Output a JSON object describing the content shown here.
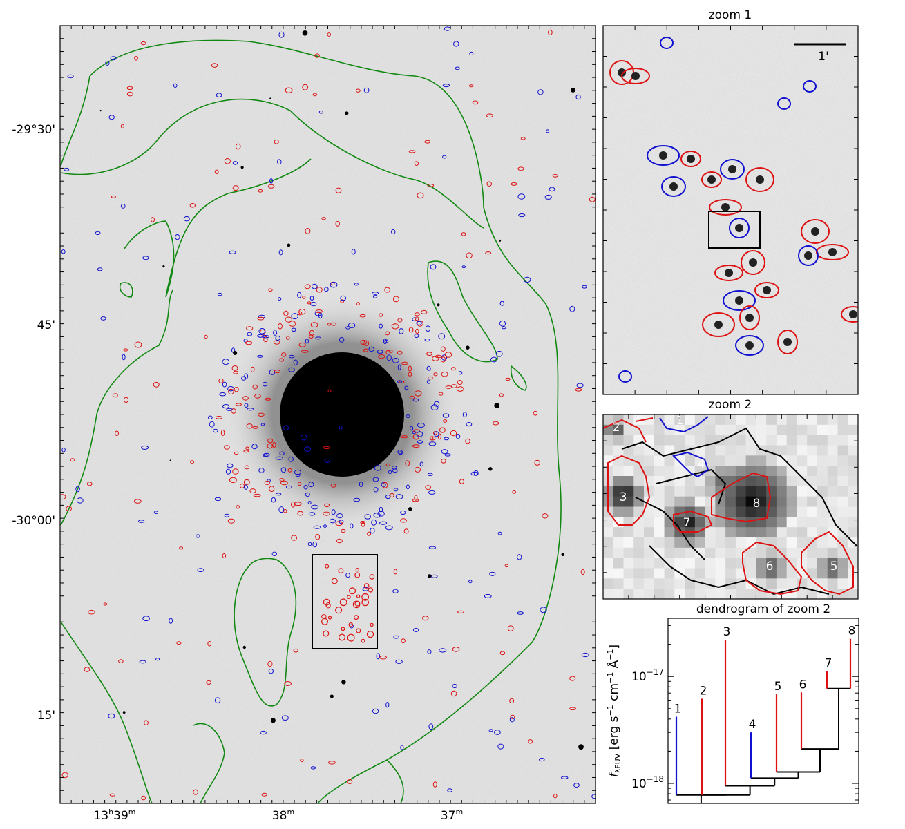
{
  "main_panel": {
    "ra_labels": [
      {
        "h": "13",
        "m": "39",
        "hsup": "h",
        "msup": "m"
      },
      {
        "m": "38",
        "msup": "m"
      },
      {
        "m": "37",
        "msup": "m"
      }
    ],
    "dec_labels": [
      "-29°30'",
      "45'",
      "-30°00'",
      "15'"
    ]
  },
  "zoom1": {
    "title": "zoom 1",
    "scale_label": "1'"
  },
  "zoom2": {
    "title": "zoom 2",
    "region_labels": [
      {
        "id": "1",
        "color": "#1010d0"
      },
      {
        "id": "2",
        "color": "#dd1111"
      },
      {
        "id": "3",
        "color": "#dd1111"
      },
      {
        "id": "4",
        "color": "#1010d0"
      },
      {
        "id": "5",
        "color": "#dd1111"
      },
      {
        "id": "6",
        "color": "#dd1111"
      },
      {
        "id": "7",
        "color": "#dd1111"
      },
      {
        "id": "8",
        "color": "#dd1111"
      }
    ]
  },
  "chart_data": {
    "type": "dendrogram",
    "title": "dendrogram of zoom 2",
    "ylabel": "f_λFUV [erg s⁻¹ cm⁻¹ Å⁻¹]",
    "ylabel_main": "f",
    "ylabel_sub": "λFUV",
    "ylabel_units": " [erg s",
    "ylabel_units2": " cm",
    "ylabel_units3": " Å",
    "ylabel_units4": "]",
    "yscale": "log",
    "ylim": [
      6.5e-19,
      3.5e-17
    ],
    "ytick_labels": [
      {
        "base": "10",
        "exp": "−18"
      },
      {
        "base": "10",
        "exp": "−17"
      }
    ],
    "leaves": [
      {
        "label": "1",
        "peak": 4.2e-18,
        "color": "#1010d0"
      },
      {
        "label": "2",
        "peak": 6.2e-18,
        "color": "#dd1111"
      },
      {
        "label": "3",
        "peak": 2.2e-17,
        "color": "#dd1111"
      },
      {
        "label": "4",
        "peak": 3e-18,
        "color": "#1010d0"
      },
      {
        "label": "5",
        "peak": 6.8e-18,
        "color": "#dd1111"
      },
      {
        "label": "6",
        "peak": 7.1e-18,
        "color": "#dd1111"
      },
      {
        "label": "7",
        "peak": 1.12e-17,
        "color": "#dd1111"
      },
      {
        "label": "8",
        "peak": 2.25e-17,
        "color": "#dd1111"
      }
    ],
    "merges": [
      {
        "children": [
          "7",
          "8"
        ],
        "level": 7.7e-18
      },
      {
        "children": [
          "6",
          "7+8"
        ],
        "level": 2.1e-18
      },
      {
        "children": [
          "5",
          "6-8"
        ],
        "level": 1.28e-18
      },
      {
        "children": [
          "4",
          "5-8"
        ],
        "level": 1.12e-18
      },
      {
        "children": [
          "3",
          "4-8"
        ],
        "level": 9.5e-19
      },
      {
        "children": [
          "2",
          "3-8"
        ],
        "level": 7.8e-19
      },
      {
        "children": [
          "1",
          "2-8"
        ],
        "level": 7.8e-19
      }
    ]
  },
  "colors": {
    "red_contour": "#dd1111",
    "blue_contour": "#1010d0",
    "green_contour": "#118811",
    "box": "#000000"
  }
}
